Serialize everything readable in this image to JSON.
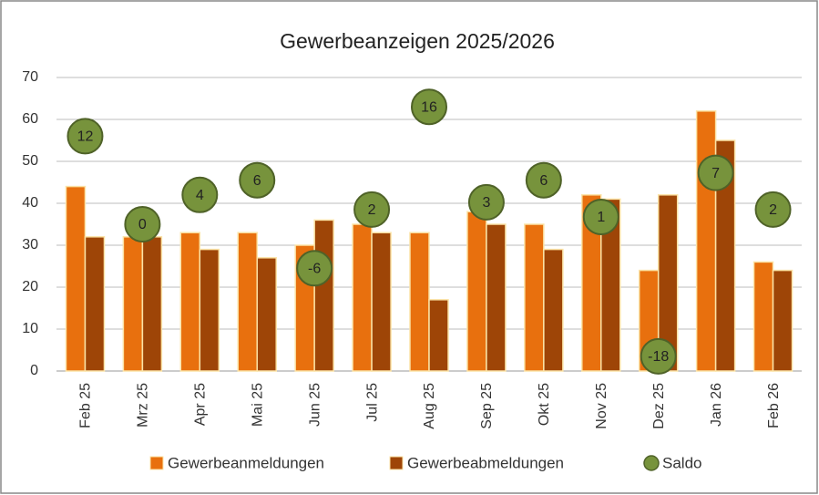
{
  "chart_data": {
    "type": "bar",
    "title": "Gewerbeanzeigen 2025/2026",
    "categories": [
      "Feb 25",
      "Mrz 25",
      "Apr 25",
      "Mai 25",
      "Jun 25",
      "Jul 25",
      "Aug 25",
      "Sep 25",
      "Okt 25",
      "Nov 25",
      "Dez 25",
      "Jan 26",
      "Feb 26"
    ],
    "series": [
      {
        "name": "Gewerbeanmeldungen",
        "color": "#e8700e",
        "values": [
          44,
          32,
          33,
          33,
          30,
          35,
          33,
          38,
          35,
          42,
          24,
          62,
          26
        ]
      },
      {
        "name": "Gewerbeabmeldungen",
        "color": "#9e4507",
        "values": [
          32,
          32,
          29,
          27,
          36,
          33,
          17,
          35,
          29,
          41,
          42,
          55,
          24
        ]
      },
      {
        "name": "Saldo",
        "color": "#77933c",
        "axis": "y2",
        "values": [
          12,
          0,
          4,
          6,
          -6,
          2,
          16,
          3,
          6,
          1,
          -18,
          7,
          2
        ]
      }
    ],
    "ylim": [
      0,
      70
    ],
    "yticks": [
      0,
      10,
      20,
      30,
      40,
      50,
      60,
      70
    ],
    "y2lim": [
      -20,
      20
    ],
    "grid": true,
    "legend": "bottom"
  }
}
